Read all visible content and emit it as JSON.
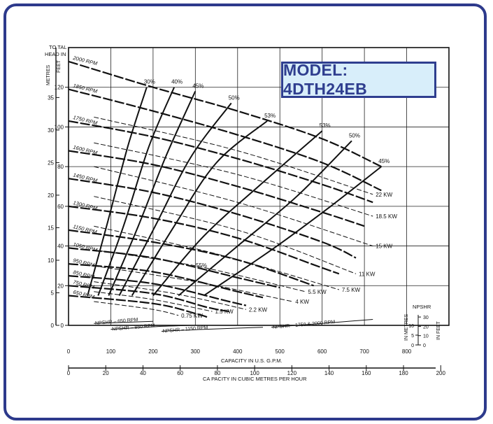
{
  "model_label": "MODEL: 4DTH24EB",
  "colors": {
    "frame": "#2d3a8c",
    "ink": "#111111",
    "model_fill": "#d8eefa",
    "model_text": "#2f3e8f"
  },
  "chart_data": {
    "type": "line",
    "xlabel": "CAPACITY  IN U.S. G.P.M.",
    "xlabel2": "CA PACITY  IN CUBIC  METRES PER HOUR",
    "ylabel_feet": "FEET",
    "ylabel_metres": "METRES",
    "ylabel_top": [
      "TO TAL",
      "HEAD  IN"
    ],
    "xlim": [
      0,
      900
    ],
    "ylim": [
      0,
      140
    ],
    "x_ticks": [
      "0",
      "100",
      "200",
      "300",
      "400",
      "500",
      "600",
      "700",
      "800"
    ],
    "x2_ticks": [
      "0",
      "20",
      "40",
      "60",
      "80",
      "100",
      "120",
      "140",
      "160",
      "180",
      "200"
    ],
    "feet_ticks": [
      "0",
      "20",
      "40",
      "60",
      "80",
      "100",
      "120"
    ],
    "metre_ticks": [
      "0",
      "5",
      "10",
      "15",
      "20",
      "25",
      "30",
      "35"
    ],
    "npshr_label": "NPSHR",
    "npshr_metres_label": "IN METRES",
    "npshr_feet_label": "IN FEET",
    "npshr_metre_ticks": [
      "0",
      "5",
      "10"
    ],
    "npshr_feet_ticks": [
      "0",
      "10",
      "20",
      "30"
    ],
    "series": [
      {
        "name": "2000 RPM",
        "points": [
          [
            0,
            133
          ],
          [
            200,
            120
          ],
          [
            400,
            108
          ],
          [
            600,
            94
          ],
          [
            740,
            80
          ]
        ]
      },
      {
        "name": "1850 RPM",
        "points": [
          [
            0,
            119
          ],
          [
            200,
            108
          ],
          [
            400,
            96
          ],
          [
            600,
            82
          ],
          [
            740,
            68
          ]
        ]
      },
      {
        "name": "1750 RPM",
        "points": [
          [
            0,
            103
          ],
          [
            200,
            95
          ],
          [
            400,
            84
          ],
          [
            600,
            71
          ],
          [
            720,
            62
          ]
        ]
      },
      {
        "name": "1600 RPM",
        "points": [
          [
            0,
            88
          ],
          [
            200,
            81
          ],
          [
            400,
            70
          ],
          [
            600,
            57
          ],
          [
            700,
            50
          ]
        ]
      },
      {
        "name": "1450 RPM",
        "points": [
          [
            0,
            74
          ],
          [
            200,
            67
          ],
          [
            400,
            56
          ],
          [
            600,
            42
          ],
          [
            680,
            34
          ]
        ]
      },
      {
        "name": "1300 RPM",
        "points": [
          [
            0,
            60
          ],
          [
            200,
            54
          ],
          [
            400,
            44
          ],
          [
            600,
            29
          ],
          [
            640,
            26
          ]
        ]
      },
      {
        "name": "1150 RPM",
        "points": [
          [
            0,
            48
          ],
          [
            200,
            42
          ],
          [
            400,
            33
          ],
          [
            580,
            20
          ]
        ]
      },
      {
        "name": "1050 RPM",
        "points": [
          [
            0,
            39
          ],
          [
            200,
            34
          ],
          [
            400,
            24
          ],
          [
            500,
            19
          ]
        ]
      },
      {
        "name": "950 RPM",
        "points": [
          [
            0,
            31
          ],
          [
            200,
            27
          ],
          [
            400,
            17
          ],
          [
            460,
            14
          ]
        ]
      },
      {
        "name": "850 RPM",
        "points": [
          [
            0,
            25
          ],
          [
            200,
            21
          ],
          [
            380,
            12
          ],
          [
            420,
            10
          ]
        ]
      },
      {
        "name": "750 RPM",
        "points": [
          [
            0,
            20
          ],
          [
            200,
            16
          ],
          [
            330,
            9
          ],
          [
            380,
            7
          ]
        ]
      },
      {
        "name": "650 RPM",
        "points": [
          [
            0,
            15
          ],
          [
            200,
            11
          ],
          [
            300,
            6
          ],
          [
            330,
            4
          ]
        ]
      }
    ],
    "efficiency": [
      {
        "label": "30%",
        "points": [
          [
            45,
            15
          ],
          [
            90,
            50
          ],
          [
            140,
            90
          ],
          [
            185,
            120
          ]
        ]
      },
      {
        "label": "40%",
        "points": [
          [
            70,
            15
          ],
          [
            130,
            50
          ],
          [
            190,
            90
          ],
          [
            250,
            120
          ]
        ]
      },
      {
        "label": "45%",
        "points": [
          [
            95,
            15
          ],
          [
            165,
            50
          ],
          [
            230,
            85
          ],
          [
            300,
            118
          ]
        ]
      },
      {
        "label": "50%",
        "points": [
          [
            120,
            15
          ],
          [
            205,
            50
          ],
          [
            290,
            85
          ],
          [
            385,
            112
          ]
        ]
      },
      {
        "label": "53%",
        "points": [
          [
            150,
            15
          ],
          [
            250,
            50
          ],
          [
            350,
            82
          ],
          [
            470,
            103
          ]
        ]
      },
      {
        "label": "53%",
        "points": [
          [
            200,
            15
          ],
          [
            320,
            45
          ],
          [
            460,
            72
          ],
          [
            600,
            98
          ]
        ]
      },
      {
        "label": "50%",
        "points": [
          [
            260,
            15
          ],
          [
            400,
            40
          ],
          [
            540,
            65
          ],
          [
            670,
            93
          ]
        ]
      },
      {
        "label": "45%",
        "points": [
          [
            320,
            15
          ],
          [
            480,
            38
          ],
          [
            620,
            60
          ],
          [
            740,
            80
          ]
        ]
      }
    ],
    "eff_55_label": "55%",
    "power": [
      {
        "label": "0.75 KW",
        "points": [
          [
            60,
            12
          ],
          [
            200,
            8
          ],
          [
            260,
            5
          ]
        ]
      },
      {
        "label": "1.5 KW",
        "points": [
          [
            60,
            17
          ],
          [
            200,
            13
          ],
          [
            340,
            7
          ]
        ]
      },
      {
        "label": "2.2 KW",
        "points": [
          [
            60,
            22
          ],
          [
            250,
            16
          ],
          [
            420,
            8
          ]
        ]
      },
      {
        "label": "4 KW",
        "points": [
          [
            60,
            30
          ],
          [
            300,
            22
          ],
          [
            530,
            12
          ]
        ]
      },
      {
        "label": "5.5 KW",
        "points": [
          [
            60,
            38
          ],
          [
            300,
            30
          ],
          [
            560,
            17
          ]
        ]
      },
      {
        "label": "7.5 KW",
        "points": [
          [
            60,
            50
          ],
          [
            350,
            36
          ],
          [
            640,
            18
          ]
        ]
      },
      {
        "label": "11 KW",
        "points": [
          [
            60,
            65
          ],
          [
            400,
            48
          ],
          [
            680,
            26
          ]
        ]
      },
      {
        "label": "15 KW",
        "points": [
          [
            60,
            80
          ],
          [
            400,
            62
          ],
          [
            720,
            40
          ]
        ]
      },
      {
        "label": "18.5 KW",
        "points": [
          [
            60,
            92
          ],
          [
            400,
            76
          ],
          [
            720,
            55
          ]
        ]
      },
      {
        "label": "22 KW",
        "points": [
          [
            60,
            105
          ],
          [
            400,
            88
          ],
          [
            720,
            66
          ]
        ]
      }
    ],
    "npshr": [
      {
        "label": "NPSHR  – 650 RPM",
        "points": [
          [
            60,
            1
          ],
          [
            200,
            2
          ]
        ]
      },
      {
        "label": "NPSHR  – 850 RPM",
        "points": [
          [
            100,
            -2
          ],
          [
            220,
            -0.5
          ],
          [
            300,
            0
          ]
        ]
      },
      {
        "label": "NPSHR  –  1150 RPM",
        "points": [
          [
            220,
            -3
          ],
          [
            320,
            -2
          ],
          [
            460,
            -1
          ]
        ]
      },
      {
        "label": "NPSHR  – 1750 & 2000 RPM",
        "points": [
          [
            480,
            -1
          ],
          [
            600,
            1
          ],
          [
            720,
            3
          ]
        ]
      }
    ]
  }
}
